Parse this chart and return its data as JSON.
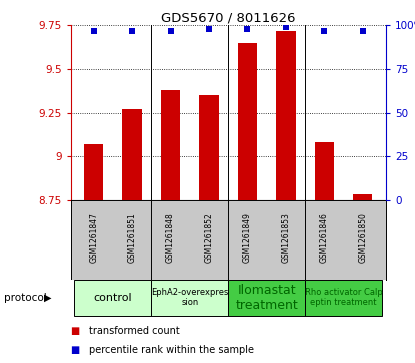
{
  "title": "GDS5670 / 8011626",
  "samples": [
    "GSM1261847",
    "GSM1261851",
    "GSM1261848",
    "GSM1261852",
    "GSM1261849",
    "GSM1261853",
    "GSM1261846",
    "GSM1261850"
  ],
  "bar_values": [
    9.07,
    9.27,
    9.38,
    9.35,
    9.65,
    9.72,
    9.08,
    8.78
  ],
  "percentile_values": [
    97,
    97,
    97,
    98,
    98,
    99,
    97,
    97
  ],
  "ylim_left": [
    8.75,
    9.75
  ],
  "ylim_right": [
    0,
    100
  ],
  "yticks_left": [
    8.75,
    9.0,
    9.25,
    9.5,
    9.75
  ],
  "yticks_right": [
    0,
    25,
    50,
    75,
    100
  ],
  "ytick_labels_left": [
    "8.75",
    "9",
    "9.25",
    "9.5",
    "9.75"
  ],
  "ytick_labels_right": [
    "0",
    "25",
    "50",
    "75",
    "100%"
  ],
  "bar_color": "#cc0000",
  "dot_color": "#0000cc",
  "protocol_groups": [
    {
      "label": "control",
      "span": [
        0,
        1
      ],
      "color": "#ccffcc",
      "text_color": "#000000",
      "fontsize": 8
    },
    {
      "label": "EphA2-overexpres\nsion",
      "span": [
        2,
        3
      ],
      "color": "#ccffcc",
      "text_color": "#000000",
      "fontsize": 6
    },
    {
      "label": "Ilomastat\ntreatment",
      "span": [
        4,
        5
      ],
      "color": "#44cc44",
      "text_color": "#006600",
      "fontsize": 9
    },
    {
      "label": "Rho activator Calp\neptin treatment",
      "span": [
        6,
        7
      ],
      "color": "#44cc44",
      "text_color": "#006600",
      "fontsize": 6
    }
  ],
  "protocol_label": "protocol",
  "legend_bar_label": "transformed count",
  "legend_dot_label": "percentile rank within the sample",
  "background_color": "#ffffff",
  "plot_bg_color": "#ffffff",
  "grid_color": "#000000",
  "tick_color_left": "#cc0000",
  "tick_color_right": "#0000cc",
  "bar_width": 0.5,
  "base_value": 8.75,
  "sample_bg_color": "#c8c8c8",
  "group_line_color": "#000000"
}
